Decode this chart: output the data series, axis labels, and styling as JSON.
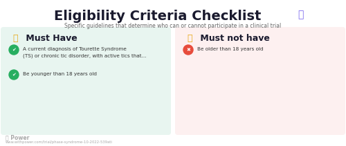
{
  "title": "Eligibility Criteria Checklist",
  "title_emoji": "📋",
  "subtitle": "Specific guidelines that determine who can or cannot participate in a clinical trial",
  "left_box_label_icon": "👍",
  "left_box_label_text": " Must Have",
  "left_box_bg": "#e8f5f0",
  "left_items": [
    {
      "text1": "A current diagnosis of Tourette Syndrome",
      "text2": "(TS) or chronic tic disorder, with active tics that...",
      "icon_color": "#27ae60"
    },
    {
      "text1": "Be younger than 18 years old",
      "text2": "",
      "icon_color": "#27ae60"
    }
  ],
  "right_box_label_icon": "👎",
  "right_box_label_text": " Must not have",
  "right_box_bg": "#fdf0f0",
  "right_items": [
    {
      "text1": "Be older than 18 years old",
      "text2": "",
      "icon_color": "#e74c3c"
    }
  ],
  "footer_logo": "Power",
  "footer_url": "www.withpower.com/trial/phase-syndrome-10-2022-539ati",
  "bg_color": "#ffffff",
  "title_color": "#1a1a2e",
  "subtitle_color": "#666666",
  "box_label_color": "#e6a817",
  "item_text_color": "#333333",
  "footer_color": "#aaaaaa"
}
